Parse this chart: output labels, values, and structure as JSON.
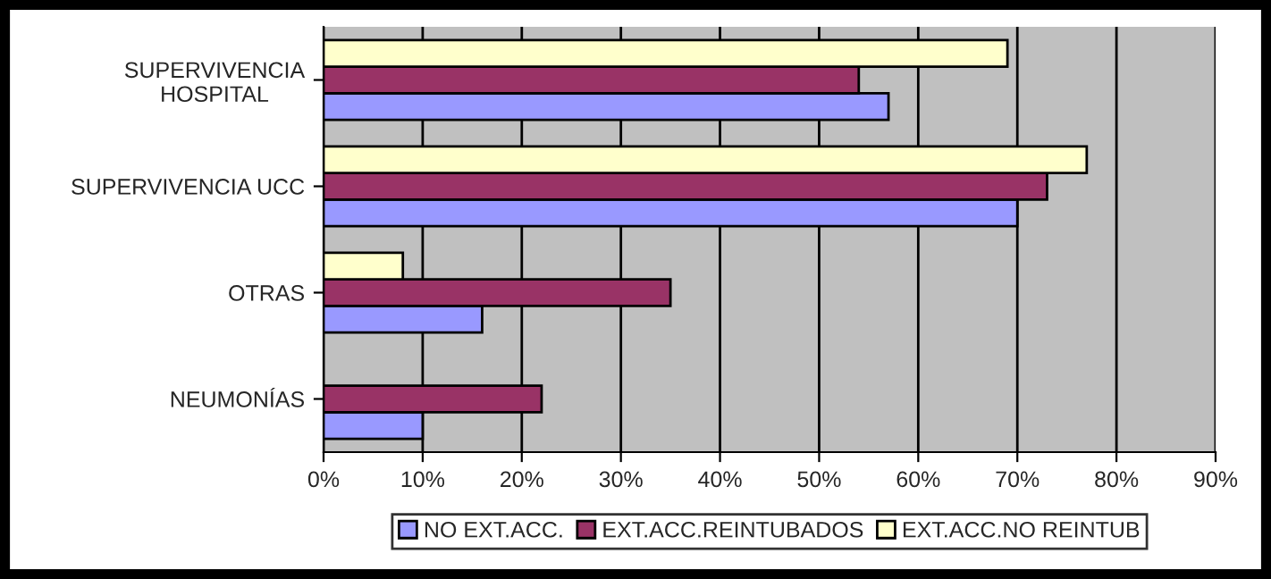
{
  "chart_data": {
    "type": "bar",
    "orientation": "horizontal",
    "categories": [
      "SUPERVIVENCIA\nHOSPITAL",
      "SUPERVIVENCIA UCC",
      "OTRAS",
      "NEUMONÍAS"
    ],
    "series": [
      {
        "name": "NO EXT.ACC.",
        "color": "#9999ff",
        "values": [
          57,
          70,
          16,
          10
        ]
      },
      {
        "name": "EXT.ACC.REINTUBADOS",
        "color": "#993366",
        "values": [
          54,
          73,
          35,
          22
        ]
      },
      {
        "name": "EXT.ACC.NO REINTUB",
        "color": "#ffffcc",
        "values": [
          69,
          77,
          8,
          null
        ]
      }
    ],
    "xlim": [
      0,
      90
    ],
    "xticks": [
      {
        "value": 0,
        "label": "0%"
      },
      {
        "value": 10,
        "label": "10%"
      },
      {
        "value": 20,
        "label": "20%"
      },
      {
        "value": 30,
        "label": "30%"
      },
      {
        "value": 40,
        "label": "40%"
      },
      {
        "value": 50,
        "label": "50%"
      },
      {
        "value": 60,
        "label": "60%"
      },
      {
        "value": 70,
        "label": "70%"
      },
      {
        "value": 80,
        "label": "80%"
      },
      {
        "value": 90,
        "label": "90%"
      }
    ],
    "grid": "x",
    "legend": "bottom"
  }
}
